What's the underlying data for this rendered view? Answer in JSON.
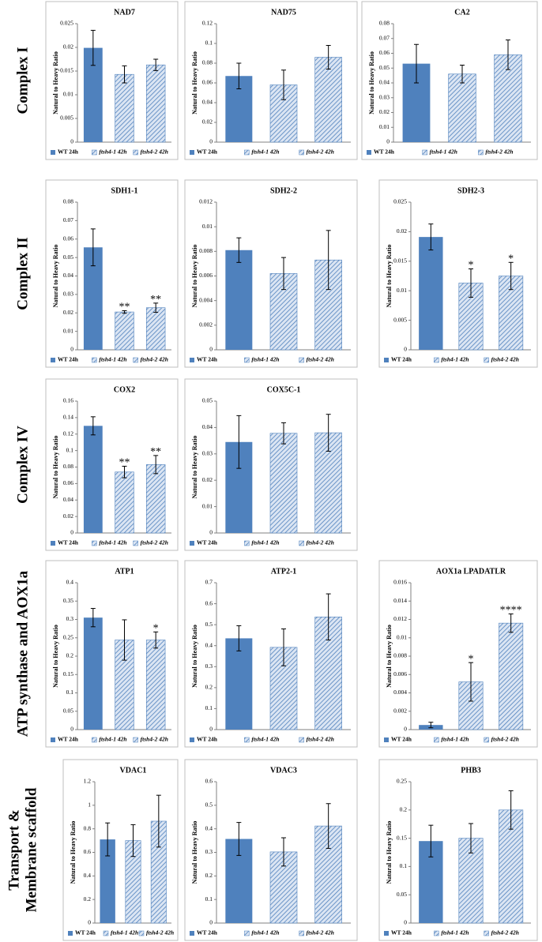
{
  "row_labels": [
    [
      "Complex I"
    ],
    [
      "Complex II"
    ],
    [
      "Complex IV"
    ],
    [
      "ATP synthase and AOX1a"
    ],
    [
      "Transport &",
      "Membrane scaffold"
    ]
  ],
  "chart_data": [
    {
      "type": "bar",
      "title": "NAD7",
      "ylabel": "Natural to Heavy Ratio",
      "categories": [
        "WT 24h",
        "ftsh4-1 42h",
        "ftsh4-2 42h"
      ],
      "colors": [
        "#4f81bd",
        "hatch",
        "hatch"
      ],
      "values": [
        0.0199,
        0.0143,
        0.0163
      ],
      "errors": [
        0.0037,
        0.0018,
        0.0012
      ],
      "ylim": [
        0,
        0.025
      ],
      "yticks": [
        0,
        0.005,
        0.01,
        0.015,
        0.02,
        0.025
      ],
      "legend": "bottom"
    },
    {
      "type": "bar",
      "title": "NAD75",
      "ylabel": "Natural to Heavy Ratio",
      "categories": [
        "WT 24h",
        "ftsh4-1 42h",
        "ftsh4-2 42h"
      ],
      "colors": [
        "#4f81bd",
        "hatch",
        "hatch"
      ],
      "values": [
        0.067,
        0.058,
        0.086
      ],
      "errors": [
        0.013,
        0.015,
        0.012
      ],
      "ylim": [
        0,
        0.12
      ],
      "yticks": [
        0,
        0.02,
        0.04,
        0.06,
        0.08,
        0.1,
        0.12
      ],
      "legend": "bottom"
    },
    {
      "type": "bar",
      "title": "CA2",
      "ylabel": "Natural to Heavy Ratio",
      "categories": [
        "WT 24h",
        "ftsh4-1 42h",
        "ftsh4-2 42h"
      ],
      "colors": [
        "#4f81bd",
        "hatch",
        "hatch"
      ],
      "values": [
        0.053,
        0.046,
        0.059
      ],
      "errors": [
        0.013,
        0.006,
        0.01
      ],
      "ylim": [
        0,
        0.08
      ],
      "yticks": [
        0,
        0.01,
        0.02,
        0.03,
        0.04,
        0.05,
        0.06,
        0.07,
        0.08
      ],
      "legend": "bottom"
    },
    {
      "type": "bar",
      "title": "SDH1-1",
      "ylabel": "Natural to Heavy Ratio",
      "categories": [
        "WT 24h",
        "ftsh4-1 42h",
        "ftsh4-2 42h"
      ],
      "colors": [
        "#4f81bd",
        "hatch",
        "hatch"
      ],
      "values": [
        0.0555,
        0.0205,
        0.0228
      ],
      "errors": [
        0.01,
        0.0007,
        0.0025
      ],
      "annotations": [
        null,
        "**",
        "**"
      ],
      "ylim": [
        0,
        0.08
      ],
      "yticks": [
        0,
        0.01,
        0.02,
        0.03,
        0.04,
        0.05,
        0.06,
        0.07,
        0.08
      ],
      "legend": "bottom"
    },
    {
      "type": "bar",
      "title": "SDH2-2",
      "ylabel": "Natural to Heavy Ratio",
      "categories": [
        "WT 24h",
        "ftsh4-1 42h",
        "ftsh4-2 42h"
      ],
      "colors": [
        "#4f81bd",
        "hatch",
        "hatch"
      ],
      "values": [
        0.0081,
        0.0062,
        0.0073
      ],
      "errors": [
        0.001,
        0.0013,
        0.0024
      ],
      "ylim": [
        0,
        0.012
      ],
      "yticks": [
        0,
        0.002,
        0.004,
        0.006,
        0.008,
        0.01,
        0.012
      ],
      "legend": "bottom"
    },
    {
      "type": "bar",
      "title": "SDH2-3",
      "ylabel": "Natural to Heavy Ratio",
      "categories": [
        "WT 24h",
        "ftsh4-1 42h",
        "ftsh4-2 42h"
      ],
      "colors": [
        "#4f81bd",
        "hatch",
        "hatch"
      ],
      "values": [
        0.0191,
        0.0113,
        0.0125
      ],
      "errors": [
        0.0022,
        0.0024,
        0.0023
      ],
      "annotations": [
        null,
        "*",
        "*"
      ],
      "ylim": [
        0,
        0.025
      ],
      "yticks": [
        0,
        0.005,
        0.01,
        0.015,
        0.02,
        0.025
      ],
      "legend": "bottom"
    },
    {
      "type": "bar",
      "title": "COX2",
      "ylabel": "Natural to Heavy Ratio",
      "categories": [
        "WT 24h",
        "ftsh4-1 42h",
        "ftsh4-2 42h"
      ],
      "colors": [
        "#4f81bd",
        "hatch",
        "hatch"
      ],
      "values": [
        0.13,
        0.074,
        0.083
      ],
      "errors": [
        0.011,
        0.007,
        0.011
      ],
      "annotations": [
        null,
        "**",
        "**"
      ],
      "ylim": [
        0,
        0.16
      ],
      "yticks": [
        0,
        0.02,
        0.04,
        0.06,
        0.08,
        0.1,
        0.12,
        0.14,
        0.16
      ],
      "legend": "bottom"
    },
    {
      "type": "bar",
      "title": "COX5C-1",
      "ylabel": "Natural to Heavy Ratio",
      "categories": [
        "WT 24h",
        "ftsh4-1 42h",
        "ftsh4-2 42h"
      ],
      "colors": [
        "#4f81bd",
        "hatch",
        "hatch"
      ],
      "values": [
        0.0345,
        0.0378,
        0.038
      ],
      "errors": [
        0.01,
        0.004,
        0.007
      ],
      "ylim": [
        0,
        0.05
      ],
      "yticks": [
        0,
        0.01,
        0.02,
        0.03,
        0.04,
        0.05
      ],
      "legend": "bottom"
    },
    {
      "type": "bar",
      "title": "ATP1",
      "ylabel": "Natural to Heavy Ratio",
      "categories": [
        "WT 24h",
        "ftsh4-1 42h",
        "ftsh4-2 42h"
      ],
      "colors": [
        "#4f81bd",
        "hatch",
        "hatch"
      ],
      "values": [
        0.305,
        0.244,
        0.244
      ],
      "errors": [
        0.025,
        0.055,
        0.022
      ],
      "annotations": [
        null,
        null,
        "*"
      ],
      "ylim": [
        0,
        0.4
      ],
      "yticks": [
        0,
        0.05,
        0.1,
        0.15,
        0.2,
        0.25,
        0.3,
        0.35,
        0.4
      ],
      "legend": "bottom"
    },
    {
      "type": "bar",
      "title": "ATP2-1",
      "ylabel": "Natural to Heavy Ratio",
      "categories": [
        "WT 24h",
        "ftsh4-1 42h",
        "ftsh4-2 42h"
      ],
      "colors": [
        "#4f81bd",
        "hatch",
        "hatch"
      ],
      "values": [
        0.435,
        0.392,
        0.537
      ],
      "errors": [
        0.06,
        0.088,
        0.11
      ],
      "ylim": [
        0,
        0.7
      ],
      "yticks": [
        0,
        0.1,
        0.2,
        0.3,
        0.4,
        0.5,
        0.6,
        0.7
      ],
      "legend": "bottom"
    },
    {
      "type": "bar",
      "title": "AOX1a   LPADATLR",
      "ylabel": "Natural to Heavy Ratio",
      "categories": [
        "WT 24h",
        "ftsh4-1 42h",
        "ftsh4-2 42h"
      ],
      "colors": [
        "#4f81bd",
        "hatch",
        "hatch"
      ],
      "values": [
        0.0005,
        0.0052,
        0.0116
      ],
      "errors": [
        0.0003,
        0.0021,
        0.001
      ],
      "annotations": [
        null,
        "*",
        "****"
      ],
      "ylim": [
        0,
        0.016
      ],
      "yticks": [
        0,
        0.002,
        0.004,
        0.006,
        0.008,
        0.01,
        0.012,
        0.014,
        0.016
      ],
      "legend": "bottom"
    },
    {
      "type": "bar",
      "title": "VDAC1",
      "ylabel": "Natural to Heavy Ratio",
      "categories": [
        "WT 24h",
        "ftsh4-1 42h",
        "ftsh4-2 42h"
      ],
      "colors": [
        "#4f81bd",
        "hatch",
        "hatch"
      ],
      "values": [
        0.71,
        0.7,
        0.865
      ],
      "errors": [
        0.14,
        0.135,
        0.22
      ],
      "ylim": [
        0,
        1.2
      ],
      "yticks": [
        0,
        0.2,
        0.4,
        0.6,
        0.8,
        1,
        1.2
      ],
      "legend": "bottom"
    },
    {
      "type": "bar",
      "title": "VDAC3",
      "ylabel": "Natural to Heavy Ratio",
      "categories": [
        "WT 24h",
        "ftsh4-1 42h",
        "ftsh4-2 42h"
      ],
      "colors": [
        "#4f81bd",
        "hatch",
        "hatch"
      ],
      "values": [
        0.357,
        0.302,
        0.412
      ],
      "errors": [
        0.07,
        0.06,
        0.095
      ],
      "ylim": [
        0,
        0.6
      ],
      "yticks": [
        0,
        0.1,
        0.2,
        0.3,
        0.4,
        0.5,
        0.6
      ],
      "legend": "bottom"
    },
    {
      "type": "bar",
      "title": "PHB3",
      "ylabel": "Natural to Heavy Ratio",
      "categories": [
        "WT 24h",
        "ftsh4-1 42h",
        "ftsh4-2 42h"
      ],
      "colors": [
        "#4f81bd",
        "hatch",
        "hatch"
      ],
      "values": [
        0.145,
        0.15,
        0.2
      ],
      "errors": [
        0.028,
        0.026,
        0.034
      ],
      "ylim": [
        0,
        0.25
      ],
      "yticks": [
        0,
        0.05,
        0.1,
        0.15,
        0.2,
        0.25
      ],
      "legend": "bottom"
    }
  ]
}
